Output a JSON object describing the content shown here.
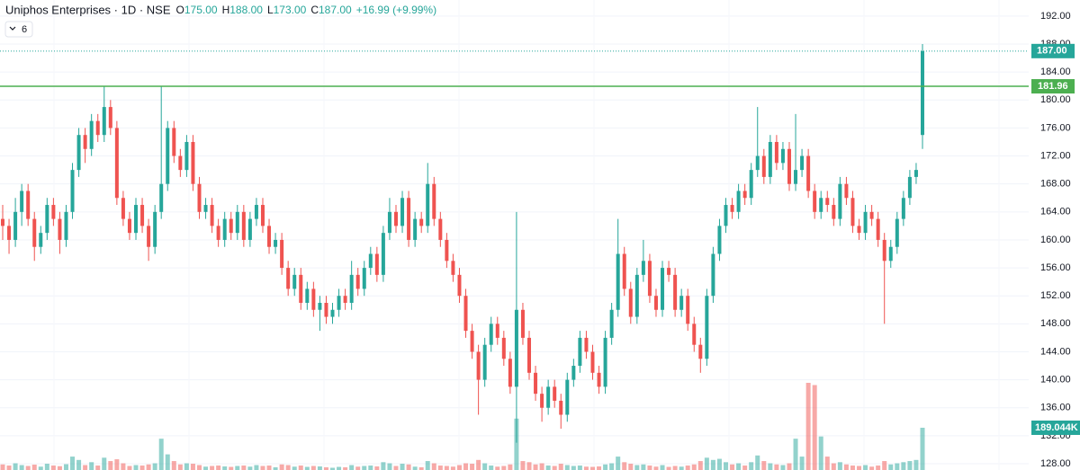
{
  "chart_data": {
    "type": "candlestick",
    "title": "Uniphos Enterprises · 1D · NSE",
    "ohlc": [
      {
        "key": "O",
        "value": "175.00"
      },
      {
        "key": "H",
        "value": "188.00"
      },
      {
        "key": "L",
        "value": "173.00"
      },
      {
        "key": "C",
        "value": "187.00"
      }
    ],
    "change": "+16.99 (+9.99%)",
    "indicator_count": "6",
    "up_color": "#26a69a",
    "down_color": "#ef5350",
    "ylim": [
      127.1,
      194.3
    ],
    "yticks": [
      {
        "value": 128,
        "label": "128.00"
      },
      {
        "value": 132,
        "label": "132.00"
      },
      {
        "value": 136,
        "label": "136.00"
      },
      {
        "value": 140,
        "label": "140.00"
      },
      {
        "value": 144,
        "label": "144.00"
      },
      {
        "value": 148,
        "label": "148.00"
      },
      {
        "value": 152,
        "label": "152.00"
      },
      {
        "value": 156,
        "label": "156.00"
      },
      {
        "value": 160,
        "label": "160.00"
      },
      {
        "value": 164,
        "label": "164.00"
      },
      {
        "value": 168,
        "label": "168.00"
      },
      {
        "value": 172,
        "label": "172.00"
      },
      {
        "value": 176,
        "label": "176.00"
      },
      {
        "value": 180,
        "label": "180.00"
      },
      {
        "value": 184,
        "label": "184.00"
      },
      {
        "value": 188,
        "label": "188.00"
      },
      {
        "value": 192,
        "label": "192.00"
      }
    ],
    "grid": true,
    "hline": {
      "value": 181.96,
      "label": "181.96",
      "color": "#4caf50"
    },
    "last_label": "187.00",
    "volume_label": "189.044K",
    "vlim": [
      0,
      402000
    ],
    "candles": [
      [
        163,
        165,
        160,
        162
      ],
      [
        162,
        163,
        158,
        160
      ],
      [
        160,
        166,
        159,
        164
      ],
      [
        164,
        168,
        162,
        167
      ],
      [
        167,
        168,
        162,
        163
      ],
      [
        163,
        164,
        157,
        159
      ],
      [
        159,
        162,
        158,
        161
      ],
      [
        161,
        166,
        160,
        165
      ],
      [
        165,
        166,
        162,
        163
      ],
      [
        163,
        164,
        158,
        160
      ],
      [
        160,
        165,
        159,
        164
      ],
      [
        164,
        171,
        163,
        170
      ],
      [
        170,
        176,
        169,
        175
      ],
      [
        175,
        176,
        171,
        173
      ],
      [
        173,
        178,
        172,
        177
      ],
      [
        177,
        178,
        174,
        175
      ],
      [
        175,
        182,
        174,
        179
      ],
      [
        179,
        180,
        175,
        176
      ],
      [
        176,
        177,
        165,
        166
      ],
      [
        166,
        167,
        162,
        163
      ],
      [
        163,
        164,
        160,
        161
      ],
      [
        161,
        166,
        160,
        165
      ],
      [
        165,
        166,
        161,
        162
      ],
      [
        162,
        163,
        157,
        159
      ],
      [
        159,
        165,
        158,
        164
      ],
      [
        164,
        182,
        163,
        168
      ],
      [
        168,
        177,
        167,
        176
      ],
      [
        176,
        177,
        171,
        172
      ],
      [
        172,
        173,
        169,
        170
      ],
      [
        170,
        175,
        169,
        174
      ],
      [
        174,
        175,
        167,
        168
      ],
      [
        168,
        169,
        163,
        164
      ],
      [
        164,
        166,
        163,
        165
      ],
      [
        165,
        166,
        161,
        162
      ],
      [
        162,
        163,
        159,
        160
      ],
      [
        160,
        164,
        159,
        163
      ],
      [
        163,
        164,
        160,
        161
      ],
      [
        161,
        165,
        160,
        164
      ],
      [
        164,
        165,
        159,
        160
      ],
      [
        160,
        164,
        159,
        163
      ],
      [
        163,
        166,
        162,
        165
      ],
      [
        165,
        166,
        161,
        162
      ],
      [
        162,
        163,
        158,
        159
      ],
      [
        159,
        161,
        158,
        160
      ],
      [
        160,
        161,
        155,
        156
      ],
      [
        156,
        157,
        152,
        153
      ],
      [
        153,
        156,
        152,
        155
      ],
      [
        155,
        156,
        150,
        151
      ],
      [
        151,
        154,
        150,
        153
      ],
      [
        153,
        154,
        149,
        150
      ],
      [
        150,
        152,
        147,
        151
      ],
      [
        151,
        152,
        148,
        149
      ],
      [
        149,
        151,
        148,
        150
      ],
      [
        150,
        153,
        149,
        152
      ],
      [
        152,
        153,
        150,
        151
      ],
      [
        151,
        157,
        150,
        155
      ],
      [
        155,
        156,
        152,
        153
      ],
      [
        153,
        157,
        152,
        156
      ],
      [
        156,
        159,
        155,
        158
      ],
      [
        158,
        159,
        154,
        155
      ],
      [
        155,
        162,
        154,
        161
      ],
      [
        161,
        166,
        160,
        164
      ],
      [
        164,
        165,
        161,
        162
      ],
      [
        162,
        167,
        161,
        166
      ],
      [
        166,
        167,
        159,
        160
      ],
      [
        160,
        164,
        159,
        163
      ],
      [
        163,
        164,
        161,
        162
      ],
      [
        162,
        171,
        161,
        168
      ],
      [
        168,
        169,
        162,
        163
      ],
      [
        163,
        164,
        159,
        160
      ],
      [
        160,
        161,
        156,
        157
      ],
      [
        157,
        158,
        154,
        155
      ],
      [
        155,
        156,
        151,
        152
      ],
      [
        152,
        153,
        146,
        147
      ],
      [
        147,
        148,
        143,
        144
      ],
      [
        144,
        145,
        135,
        140
      ],
      [
        140,
        146,
        139,
        145
      ],
      [
        145,
        149,
        144,
        148
      ],
      [
        148,
        149,
        145,
        146
      ],
      [
        146,
        147,
        142,
        143
      ],
      [
        143,
        144,
        138,
        139
      ],
      [
        139,
        164,
        131,
        150
      ],
      [
        150,
        151,
        145,
        146
      ],
      [
        146,
        147,
        140,
        141
      ],
      [
        141,
        142,
        137,
        138
      ],
      [
        138,
        139,
        134,
        136
      ],
      [
        136,
        140,
        135,
        139
      ],
      [
        139,
        140,
        136,
        137
      ],
      [
        137,
        138,
        133,
        135
      ],
      [
        135,
        141,
        134,
        140
      ],
      [
        140,
        143,
        139,
        142
      ],
      [
        142,
        147,
        141,
        146
      ],
      [
        146,
        147,
        143,
        144
      ],
      [
        144,
        145,
        140,
        141
      ],
      [
        141,
        142,
        138,
        139
      ],
      [
        139,
        147,
        138,
        146
      ],
      [
        146,
        151,
        145,
        150
      ],
      [
        150,
        163,
        149,
        158
      ],
      [
        158,
        159,
        152,
        153
      ],
      [
        153,
        154,
        148,
        149
      ],
      [
        149,
        156,
        148,
        155
      ],
      [
        155,
        160,
        154,
        157
      ],
      [
        157,
        158,
        151,
        152
      ],
      [
        152,
        153,
        149,
        150
      ],
      [
        150,
        157,
        149,
        156
      ],
      [
        156,
        157,
        154,
        155
      ],
      [
        155,
        156,
        149,
        150
      ],
      [
        150,
        153,
        149,
        152
      ],
      [
        152,
        153,
        147,
        148
      ],
      [
        148,
        149,
        144,
        145
      ],
      [
        145,
        146,
        141,
        143
      ],
      [
        143,
        153,
        142,
        152
      ],
      [
        152,
        159,
        151,
        158
      ],
      [
        158,
        163,
        157,
        162
      ],
      [
        162,
        166,
        161,
        165
      ],
      [
        165,
        166,
        163,
        164
      ],
      [
        164,
        168,
        163,
        167
      ],
      [
        167,
        168,
        165,
        166
      ],
      [
        166,
        171,
        165,
        170
      ],
      [
        170,
        179,
        169,
        172
      ],
      [
        172,
        173,
        168,
        169
      ],
      [
        169,
        175,
        168,
        174
      ],
      [
        174,
        175,
        170,
        171
      ],
      [
        171,
        174,
        170,
        173
      ],
      [
        173,
        174,
        167,
        168
      ],
      [
        168,
        178,
        167,
        170
      ],
      [
        170,
        173,
        169,
        172
      ],
      [
        172,
        173,
        166,
        167
      ],
      [
        167,
        168,
        163,
        164
      ],
      [
        164,
        167,
        163,
        166
      ],
      [
        166,
        167,
        164,
        165
      ],
      [
        165,
        166,
        162,
        163
      ],
      [
        163,
        169,
        162,
        168
      ],
      [
        168,
        169,
        165,
        166
      ],
      [
        166,
        167,
        161,
        162
      ],
      [
        162,
        163,
        160,
        161
      ],
      [
        161,
        165,
        160,
        164
      ],
      [
        164,
        165,
        162,
        163
      ],
      [
        163,
        164,
        159,
        160
      ],
      [
        160,
        161,
        148,
        157
      ],
      [
        157,
        160,
        156,
        159
      ],
      [
        159,
        164,
        158,
        163
      ],
      [
        163,
        167,
        162,
        166
      ],
      [
        166,
        170,
        165,
        169
      ],
      [
        169,
        171,
        168,
        170
      ],
      [
        175,
        188,
        173,
        187
      ]
    ],
    "volume": [
      25000,
      20000,
      30000,
      22000,
      18000,
      24000,
      15000,
      28000,
      20000,
      17000,
      26000,
      60000,
      45000,
      22000,
      35000,
      20000,
      55000,
      40000,
      48000,
      30000,
      18000,
      22000,
      20000,
      25000,
      30000,
      140000,
      70000,
      40000,
      25000,
      30000,
      28000,
      22000,
      15000,
      18000,
      20000,
      16000,
      14000,
      18000,
      20000,
      15000,
      22000,
      18000,
      20000,
      12000,
      25000,
      22000,
      15000,
      20000,
      14000,
      18000,
      16000,
      12000,
      10000,
      14000,
      12000,
      22000,
      15000,
      18000,
      20000,
      16000,
      35000,
      30000,
      18000,
      28000,
      25000,
      15000,
      12000,
      40000,
      30000,
      20000,
      18000,
      15000,
      22000,
      30000,
      28000,
      45000,
      30000,
      20000,
      15000,
      18000,
      25000,
      230000,
      40000,
      35000,
      25000,
      30000,
      20000,
      18000,
      28000,
      22000,
      18000,
      20000,
      15000,
      14000,
      16000,
      25000,
      30000,
      60000,
      35000,
      28000,
      22000,
      25000,
      20000,
      15000,
      22000,
      14000,
      18000,
      15000,
      20000,
      25000,
      40000,
      55000,
      45000,
      50000,
      35000,
      25000,
      30000,
      20000,
      35000,
      65000,
      40000,
      30000,
      25000,
      22000,
      30000,
      140000,
      60000,
      390000,
      380000,
      150000,
      60000,
      30000,
      35000,
      25000,
      20000,
      18000,
      22000,
      15000,
      20000,
      40000,
      25000,
      30000,
      35000,
      40000,
      45000,
      189044
    ]
  }
}
